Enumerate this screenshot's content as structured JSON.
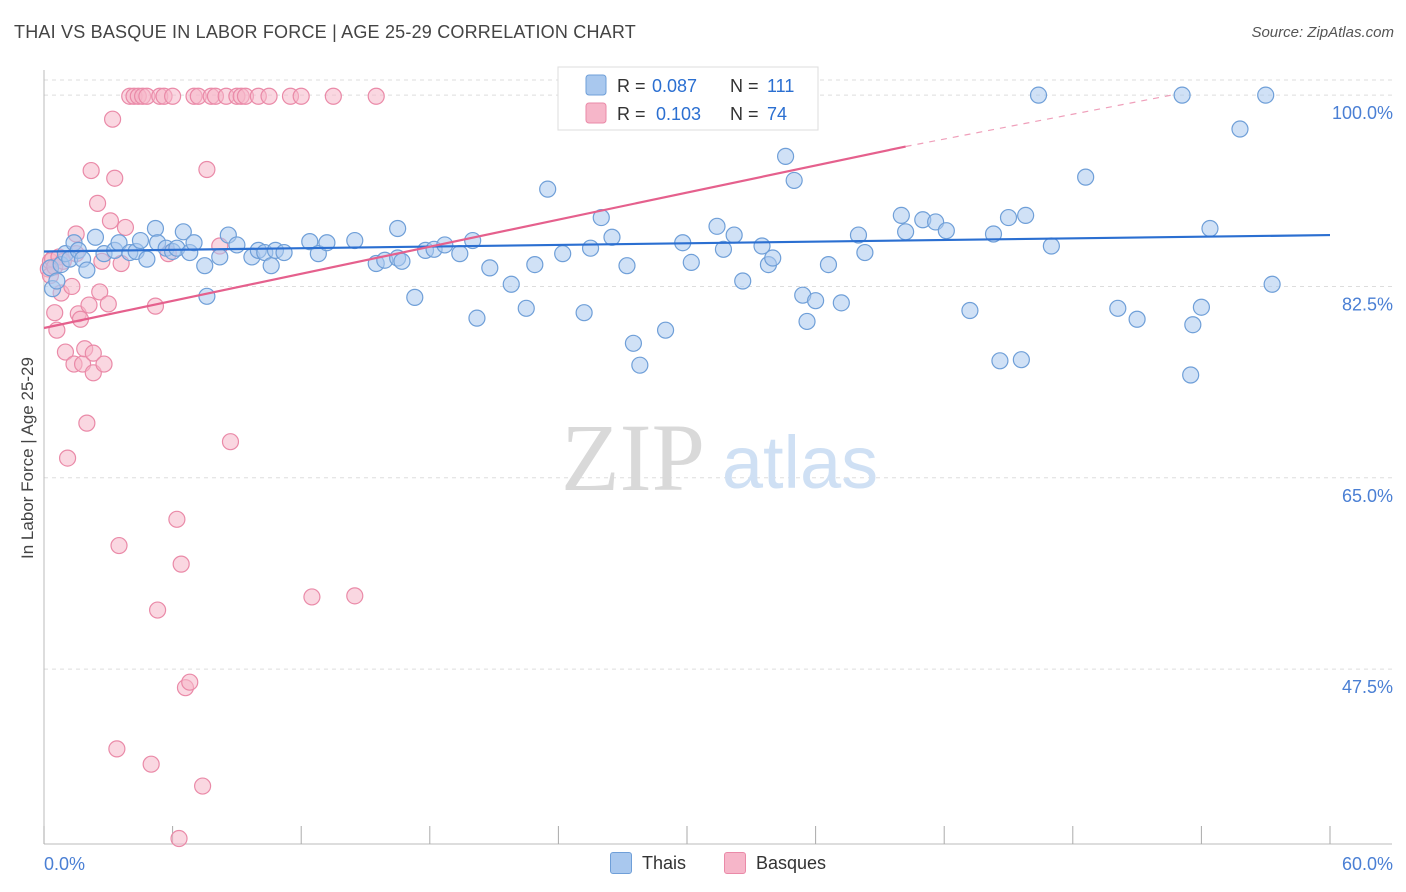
{
  "header": {
    "title": "THAI VS BASQUE IN LABOR FORCE | AGE 25-29 CORRELATION CHART",
    "source": "Source: ZipAtlas.com"
  },
  "watermark": {
    "zip": "ZIP",
    "atlas": "atlas"
  },
  "colors": {
    "thais_fill": "#a9c8ee",
    "thais_stroke": "#6f9fd8",
    "thais_line": "#2b6fd1",
    "basques_fill": "#f6b6c9",
    "basques_stroke": "#ea8aa8",
    "basques_line": "#e5608d",
    "axis_label": "#4a7fd4",
    "grid": "#dddddd"
  },
  "stats_legend": [
    {
      "r_label": "R =",
      "r_value": "0.087",
      "n_label": "N =",
      "n_value": "111",
      "series": "Thais"
    },
    {
      "r_label": "R =",
      "r_value": "0.103",
      "n_label": "N =",
      "n_value": "74",
      "series": "Basques"
    }
  ],
  "chart_data": {
    "type": "scatter",
    "title": "THAI VS BASQUE IN LABOR FORCE | AGE 25-29 CORRELATION CHART",
    "xlabel": "",
    "ylabel": "In Labor Force | Age 25-29",
    "xlim": [
      0,
      60
    ],
    "ylim": [
      31.5,
      102.3
    ],
    "x_tick_labels": [
      "0.0%",
      "60.0%"
    ],
    "y_ticks": [
      47.5,
      65.0,
      82.5,
      100.0
    ],
    "y_tick_labels": [
      "47.5%",
      "65.0%",
      "82.5%",
      "100.0%"
    ],
    "grid": true,
    "legend": "bottom",
    "series": [
      {
        "name": "Thais",
        "trendline": {
          "x": [
            0,
            60
          ],
          "y": [
            85.7,
            87.2
          ]
        },
        "points": [
          [
            0.3,
            84.2
          ],
          [
            0.4,
            82.3
          ],
          [
            0.6,
            83.0
          ],
          [
            0.8,
            84.5
          ],
          [
            1.0,
            85.5
          ],
          [
            1.2,
            85.0
          ],
          [
            1.4,
            86.5
          ],
          [
            1.6,
            85.8
          ],
          [
            1.8,
            85.0
          ],
          [
            2.0,
            84.0
          ],
          [
            2.4,
            87.0
          ],
          [
            2.8,
            85.5
          ],
          [
            3.3,
            85.8
          ],
          [
            3.5,
            86.5
          ],
          [
            4.0,
            85.6
          ],
          [
            4.3,
            85.7
          ],
          [
            4.5,
            86.7
          ],
          [
            4.8,
            85.0
          ],
          [
            5.2,
            87.8
          ],
          [
            5.3,
            86.5
          ],
          [
            5.7,
            86.0
          ],
          [
            6.0,
            85.7
          ],
          [
            6.2,
            86.0
          ],
          [
            6.5,
            87.5
          ],
          [
            6.8,
            85.6
          ],
          [
            7.0,
            86.5
          ],
          [
            7.5,
            84.4
          ],
          [
            7.6,
            81.6
          ],
          [
            8.2,
            85.2
          ],
          [
            8.6,
            87.2
          ],
          [
            9.0,
            86.3
          ],
          [
            9.7,
            85.2
          ],
          [
            10.0,
            85.8
          ],
          [
            10.3,
            85.6
          ],
          [
            10.6,
            84.4
          ],
          [
            10.8,
            85.8
          ],
          [
            11.2,
            85.6
          ],
          [
            12.4,
            86.6
          ],
          [
            12.8,
            85.5
          ],
          [
            13.2,
            86.5
          ],
          [
            14.5,
            86.7
          ],
          [
            15.5,
            84.6
          ],
          [
            15.9,
            84.9
          ],
          [
            16.5,
            85.1
          ],
          [
            16.5,
            87.8
          ],
          [
            16.7,
            84.8
          ],
          [
            17.3,
            81.5
          ],
          [
            17.8,
            85.8
          ],
          [
            18.2,
            85.9
          ],
          [
            18.7,
            86.3
          ],
          [
            19.4,
            85.5
          ],
          [
            20.0,
            86.7
          ],
          [
            20.2,
            79.6
          ],
          [
            20.8,
            84.2
          ],
          [
            21.8,
            82.7
          ],
          [
            22.5,
            80.5
          ],
          [
            22.9,
            84.5
          ],
          [
            23.5,
            91.4
          ],
          [
            24.2,
            85.5
          ],
          [
            25.2,
            80.1
          ],
          [
            25.5,
            86.0
          ],
          [
            26.0,
            88.8
          ],
          [
            26.5,
            87.0
          ],
          [
            27.2,
            84.4
          ],
          [
            27.5,
            77.3
          ],
          [
            27.8,
            75.3
          ],
          [
            29.0,
            78.5
          ],
          [
            29.8,
            86.5
          ],
          [
            30.2,
            84.7
          ],
          [
            31.4,
            88.0
          ],
          [
            31.7,
            85.9
          ],
          [
            32.2,
            87.2
          ],
          [
            32.6,
            83.0
          ],
          [
            33.5,
            86.2
          ],
          [
            33.8,
            84.5
          ],
          [
            34.0,
            85.1
          ],
          [
            34.6,
            94.4
          ],
          [
            35.0,
            92.2
          ],
          [
            35.4,
            81.7
          ],
          [
            35.6,
            79.3
          ],
          [
            36.0,
            81.2
          ],
          [
            36.6,
            84.5
          ],
          [
            37.2,
            81.0
          ],
          [
            38.0,
            87.2
          ],
          [
            38.3,
            85.6
          ],
          [
            40.0,
            89.0
          ],
          [
            40.2,
            87.5
          ],
          [
            41.0,
            88.6
          ],
          [
            41.6,
            88.4
          ],
          [
            42.1,
            87.6
          ],
          [
            43.2,
            80.3
          ],
          [
            44.3,
            87.3
          ],
          [
            44.6,
            75.7
          ],
          [
            45.0,
            88.8
          ],
          [
            45.6,
            75.8
          ],
          [
            45.8,
            89.0
          ],
          [
            46.4,
            100.0
          ],
          [
            47.0,
            86.2
          ],
          [
            48.6,
            92.5
          ],
          [
            50.1,
            80.5
          ],
          [
            51.0,
            79.5
          ],
          [
            53.1,
            100.0
          ],
          [
            53.5,
            74.4
          ],
          [
            53.6,
            79.0
          ],
          [
            54.0,
            80.6
          ],
          [
            54.4,
            87.8
          ],
          [
            55.8,
            96.9
          ],
          [
            57.0,
            100.0
          ],
          [
            57.3,
            82.7
          ]
        ]
      },
      {
        "name": "Basques",
        "trendline": {
          "x": [
            0,
            40.2
          ],
          "y": [
            78.7,
            95.3
          ],
          "dashed_to": {
            "x": [
              40.2,
              52.6
            ],
            "y": [
              95.3,
              100.0
            ]
          }
        },
        "points": [
          [
            0.2,
            84.1
          ],
          [
            0.3,
            84.8
          ],
          [
            0.3,
            83.5
          ],
          [
            0.4,
            85.0
          ],
          [
            0.5,
            84.3
          ],
          [
            0.5,
            80.1
          ],
          [
            0.6,
            78.5
          ],
          [
            0.7,
            85.2
          ],
          [
            0.8,
            81.9
          ],
          [
            0.9,
            84.8
          ],
          [
            1.0,
            76.5
          ],
          [
            1.1,
            66.8
          ],
          [
            1.3,
            82.5
          ],
          [
            1.4,
            75.4
          ],
          [
            1.5,
            87.3
          ],
          [
            1.5,
            85.5
          ],
          [
            1.6,
            80.0
          ],
          [
            1.7,
            79.5
          ],
          [
            1.8,
            75.4
          ],
          [
            1.9,
            76.8
          ],
          [
            2.0,
            70.0
          ],
          [
            2.1,
            80.8
          ],
          [
            2.2,
            93.1
          ],
          [
            2.3,
            76.4
          ],
          [
            2.3,
            74.6
          ],
          [
            2.5,
            90.1
          ],
          [
            2.6,
            82.0
          ],
          [
            2.7,
            84.8
          ],
          [
            2.8,
            75.4
          ],
          [
            3.0,
            80.9
          ],
          [
            3.1,
            88.5
          ],
          [
            3.2,
            97.8
          ],
          [
            3.3,
            92.4
          ],
          [
            3.4,
            40.2
          ],
          [
            3.5,
            58.8
          ],
          [
            3.6,
            84.6
          ],
          [
            3.8,
            87.9
          ],
          [
            4.0,
            99.9
          ],
          [
            4.2,
            99.9
          ],
          [
            4.4,
            99.9
          ],
          [
            4.6,
            99.9
          ],
          [
            4.8,
            99.9
          ],
          [
            5.0,
            38.8
          ],
          [
            5.2,
            80.7
          ],
          [
            5.3,
            52.9
          ],
          [
            5.4,
            99.9
          ],
          [
            5.6,
            99.9
          ],
          [
            5.8,
            85.5
          ],
          [
            6.0,
            99.9
          ],
          [
            6.2,
            61.2
          ],
          [
            6.3,
            32.0
          ],
          [
            6.4,
            57.1
          ],
          [
            6.6,
            45.8
          ],
          [
            6.8,
            46.3
          ],
          [
            7.0,
            99.9
          ],
          [
            7.2,
            99.9
          ],
          [
            7.4,
            36.8
          ],
          [
            7.6,
            93.2
          ],
          [
            7.8,
            99.9
          ],
          [
            8.0,
            99.9
          ],
          [
            8.2,
            86.2
          ],
          [
            8.5,
            99.9
          ],
          [
            8.7,
            68.3
          ],
          [
            9.0,
            99.9
          ],
          [
            9.2,
            99.9
          ],
          [
            9.4,
            99.9
          ],
          [
            10.0,
            99.9
          ],
          [
            10.5,
            99.9
          ],
          [
            11.5,
            99.9
          ],
          [
            12.0,
            99.9
          ],
          [
            12.5,
            54.1
          ],
          [
            13.5,
            99.9
          ],
          [
            14.5,
            54.2
          ],
          [
            15.5,
            99.9
          ]
        ]
      }
    ]
  }
}
